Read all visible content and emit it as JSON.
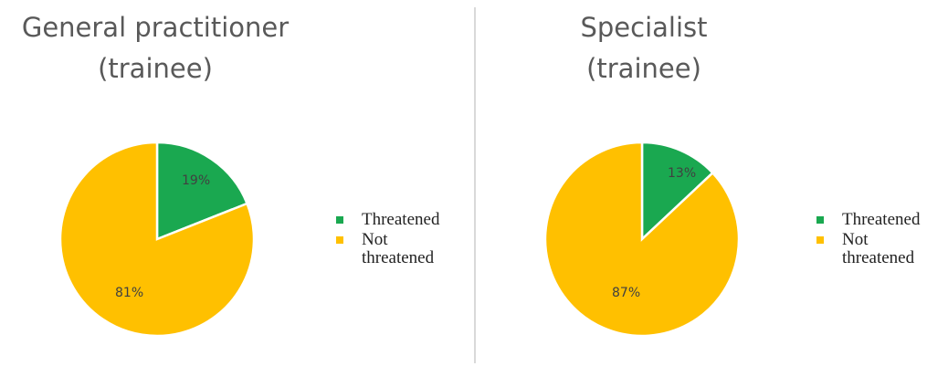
{
  "colors": {
    "threatened": "#1aa850",
    "not_threatened": "#ffc000"
  },
  "chart_data": [
    {
      "type": "pie",
      "title_lines": [
        "General practitioner",
        "(trainee)"
      ],
      "categories": [
        "Threatened",
        "Not threatened"
      ],
      "values": [
        19,
        81
      ],
      "labels": [
        "19%",
        "81%"
      ],
      "legend_position": "right"
    },
    {
      "type": "pie",
      "title_lines": [
        "Specialist",
        "(trainee)"
      ],
      "categories": [
        "Threatened",
        "Not threatened"
      ],
      "values": [
        13,
        87
      ],
      "labels": [
        "13%",
        "87%"
      ],
      "legend_position": "right"
    }
  ],
  "legend": [
    {
      "label": "Threatened",
      "color_key": "threatened"
    },
    {
      "label": "Not threatened",
      "color_key": "not_threatened"
    }
  ]
}
